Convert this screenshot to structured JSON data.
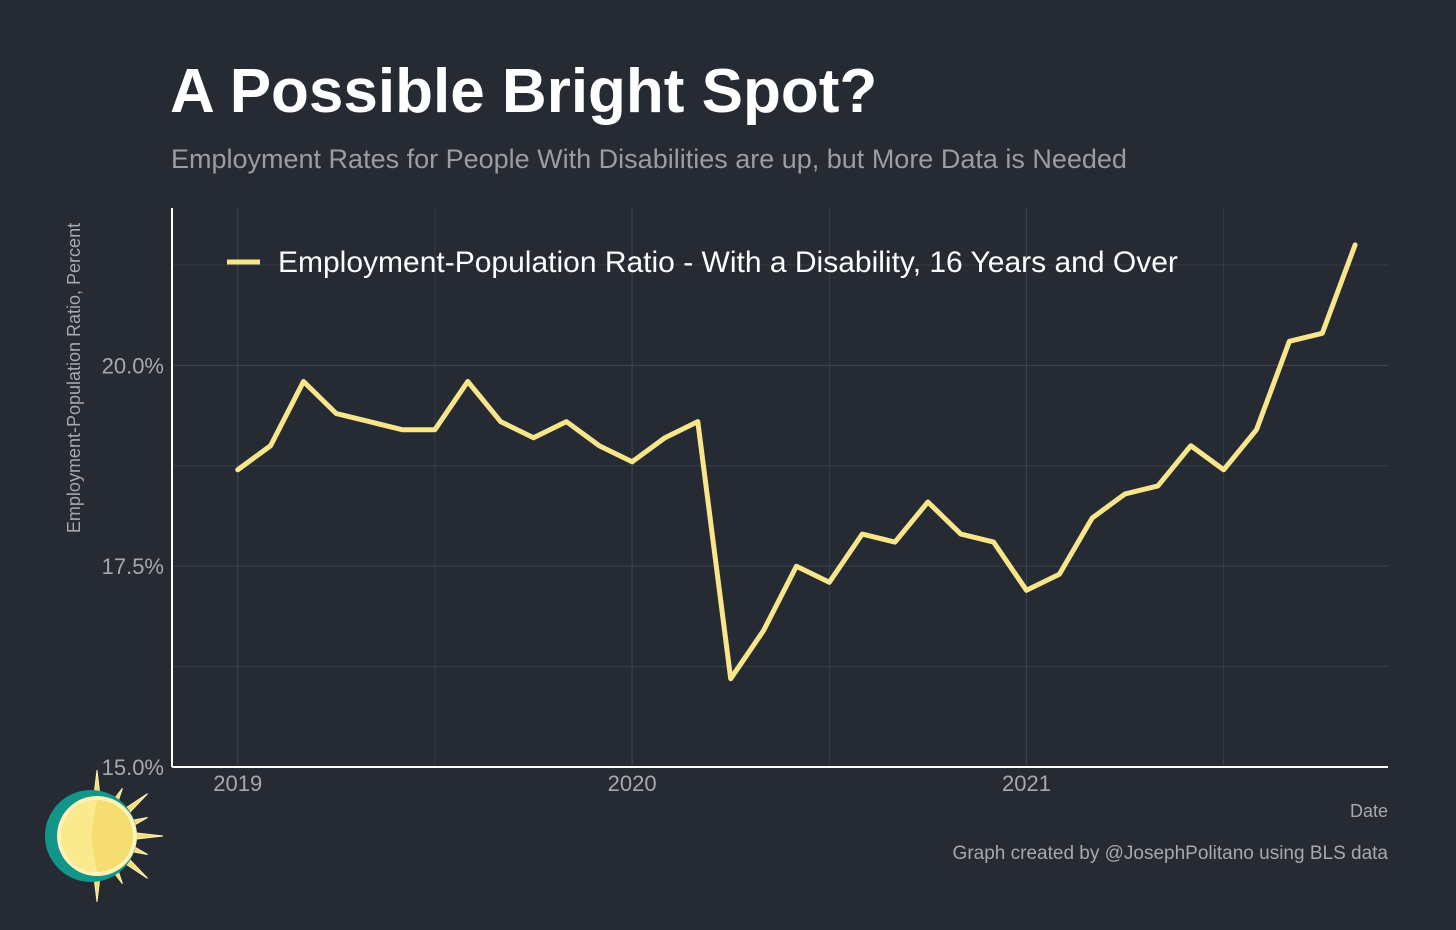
{
  "header": {
    "title": "A Possible Bright Spot?",
    "subtitle": "Employment Rates for People With Disabilities are up, but More Data is Needed"
  },
  "footer": {
    "caption": "Graph created by @JosephPolitano using BLS data"
  },
  "colors": {
    "background": "#252a33",
    "line": "#f9e58a",
    "grid": "#3d424b",
    "axis": "#ffffff",
    "sun_yellow": "#f6dd72",
    "sun_teal": "#13968a"
  },
  "icons": {
    "logo": "sun-icon"
  },
  "chart_data": {
    "type": "line",
    "title": "A Possible Bright Spot?",
    "subtitle": "Employment Rates for People With Disabilities are up, but More Data is Needed",
    "xlabel": "Date",
    "ylabel": "Employment-Population Ratio, Percent",
    "xlim": [
      "2018-11",
      "2021-12"
    ],
    "ylim": [
      15.0,
      21.96
    ],
    "y_ticks": [
      15.0,
      17.5,
      20.0
    ],
    "y_tick_labels": [
      "15.0%",
      "17.5%",
      "20.0%"
    ],
    "x_ticks": [
      "2019-01",
      "2020-01",
      "2021-01"
    ],
    "x_tick_labels": [
      "2019",
      "2020",
      "2021"
    ],
    "grid": true,
    "legend_position": "top-left",
    "series": [
      {
        "name": "Employment-Population Ratio - With a Disability, 16 Years and Over",
        "x": [
          "2019-01",
          "2019-02",
          "2019-03",
          "2019-04",
          "2019-05",
          "2019-06",
          "2019-07",
          "2019-08",
          "2019-09",
          "2019-10",
          "2019-11",
          "2019-12",
          "2020-01",
          "2020-02",
          "2020-03",
          "2020-04",
          "2020-05",
          "2020-06",
          "2020-07",
          "2020-08",
          "2020-09",
          "2020-10",
          "2020-11",
          "2020-12",
          "2021-01",
          "2021-02",
          "2021-03",
          "2021-04",
          "2021-05",
          "2021-06",
          "2021-07",
          "2021-08",
          "2021-09",
          "2021-10",
          "2021-11"
        ],
        "values": [
          18.7,
          19.0,
          19.8,
          19.4,
          19.3,
          19.2,
          19.2,
          19.8,
          19.3,
          19.1,
          19.3,
          19.0,
          18.8,
          19.1,
          19.3,
          16.1,
          16.7,
          17.5,
          17.3,
          17.9,
          17.8,
          18.3,
          17.9,
          17.8,
          17.2,
          17.4,
          18.1,
          18.4,
          18.5,
          19.0,
          18.7,
          19.2,
          20.3,
          20.4,
          21.5
        ]
      }
    ]
  }
}
